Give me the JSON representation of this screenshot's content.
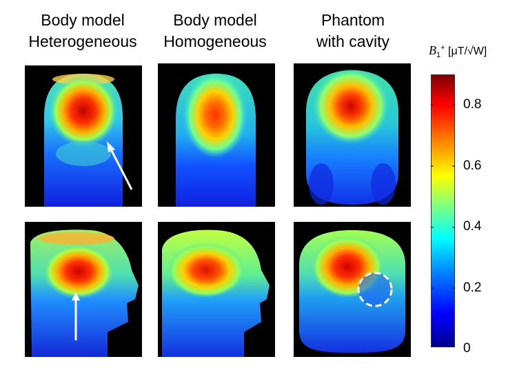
{
  "columns": [
    {
      "line1": "Body model",
      "line2": "Heterogeneous"
    },
    {
      "line1": "Body model",
      "line2": "Homogeneous"
    },
    {
      "line1": "Phantom",
      "line2": "with cavity"
    }
  ],
  "colorbar": {
    "symbol": "B",
    "subscript": "1",
    "superscript": "+",
    "unit": "[μT/√W]",
    "ticks": [
      "0.8",
      "0.6",
      "0.4",
      "0.2",
      "0"
    ],
    "colormap": "jet"
  },
  "annotations": {
    "arrow_color": "#ffffff",
    "cavity_circle_color": "#ffffff"
  }
}
